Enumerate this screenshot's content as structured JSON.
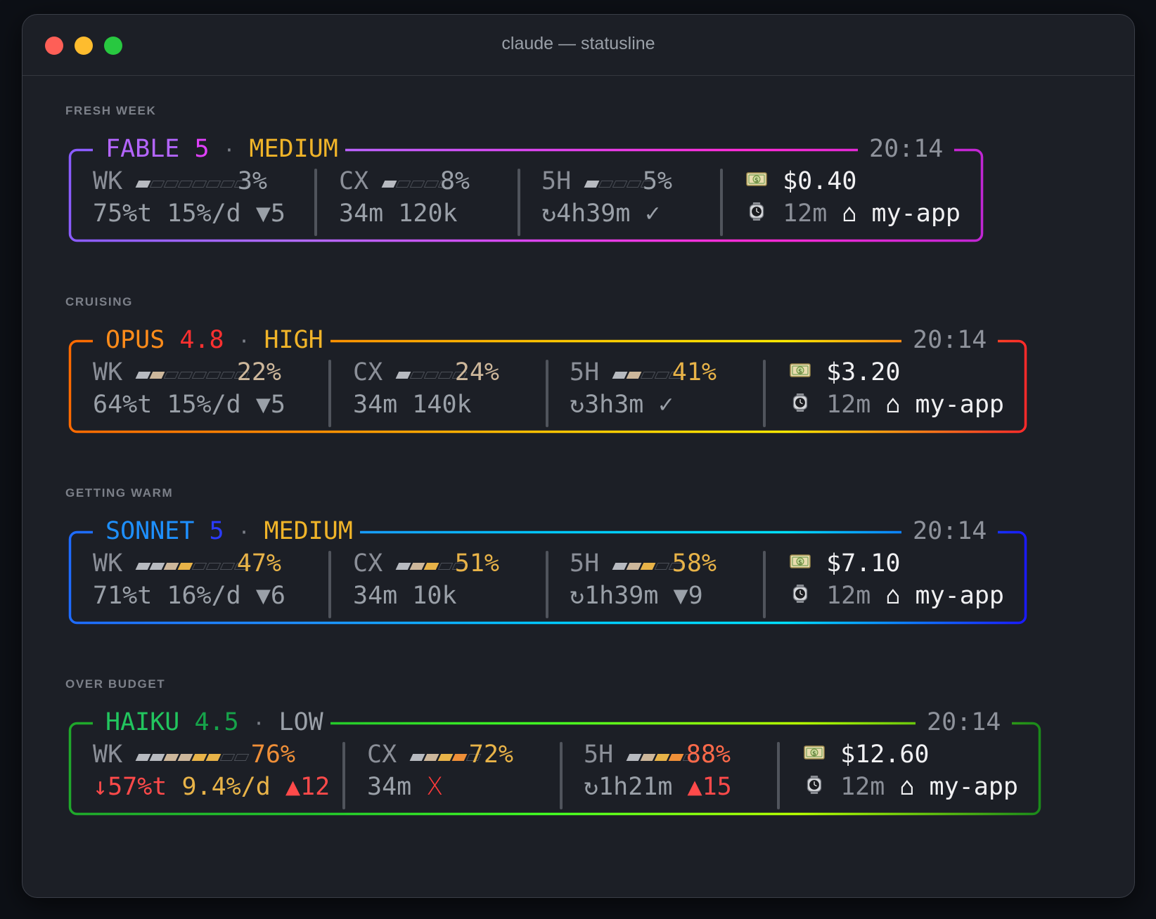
{
  "window": {
    "title": "claude — statusline"
  },
  "colors": {
    "bg": "#1c1f26",
    "muted": "#8b8f98",
    "white": "#f0f0f2",
    "amber": "#e8b348",
    "orange": "#ef8f38",
    "red": "#ff4a4a"
  },
  "cards": [
    {
      "section": "FRESH WEEK",
      "model": "FABLE",
      "version": "5",
      "effort": "MEDIUM",
      "time": "20:14",
      "colors": {
        "model": "#b465ff",
        "version": "#e040fb",
        "effort": "#f0b429",
        "border": [
          "#8a5cff",
          "#b26bff",
          "#d946ef",
          "#ff2bd6",
          "#c026d3"
        ]
      },
      "wk": {
        "label": "WK",
        "bar": [
          1,
          0,
          0,
          0,
          0,
          0,
          0,
          0
        ],
        "pct": "3%",
        "pct_color": "#9aa0a8",
        "l2": [
          "75%t",
          "15%/d",
          "▼5"
        ],
        "l2_colors": [
          "#9aa0a8",
          "#9aa0a8",
          "#9aa0a8"
        ]
      },
      "cx": {
        "label": "CX",
        "bar": [
          1,
          0,
          0,
          0,
          0
        ],
        "pct": "8%",
        "pct_color": "#9aa0a8",
        "l2": [
          "34m",
          "120k"
        ],
        "l2_colors": [
          "#9aa0a8",
          "#9aa0a8"
        ]
      },
      "fh": {
        "label": "5H",
        "bar": [
          1,
          0,
          0,
          0,
          0
        ],
        "pct": "5%",
        "pct_color": "#9aa0a8",
        "l2": [
          "↻4h39m",
          "✓"
        ],
        "l2_colors": [
          "#9aa0a8",
          "#9aa0a8"
        ]
      },
      "cost": "$0.40",
      "duration": "12m",
      "home_glyph": "⌂",
      "project": "my-app"
    },
    {
      "section": "CRUISING",
      "model": "OPUS",
      "version": "4.8",
      "effort": "HIGH",
      "time": "20:14",
      "colors": {
        "model": "#ff8c1a",
        "version": "#ff3030",
        "effort": "#f0b429",
        "border": [
          "#ff6a00",
          "#ff8c00",
          "#ffc400",
          "#ffea00",
          "#ff2a2a"
        ]
      },
      "wk": {
        "label": "WK",
        "bar": [
          1,
          2,
          0,
          0,
          0,
          0,
          0,
          0
        ],
        "pct": "22%",
        "pct_color": "#cdb79b",
        "l2": [
          "64%t",
          "15%/d",
          "▼5"
        ],
        "l2_colors": [
          "#9aa0a8",
          "#9aa0a8",
          "#9aa0a8"
        ]
      },
      "cx": {
        "label": "CX",
        "bar": [
          1,
          0,
          0,
          0,
          0
        ],
        "pct": "24%",
        "pct_color": "#cdb79b",
        "l2": [
          "34m",
          "140k"
        ],
        "l2_colors": [
          "#9aa0a8",
          "#9aa0a8"
        ]
      },
      "fh": {
        "label": "5H",
        "bar": [
          1,
          2,
          0,
          0,
          0
        ],
        "pct": "41%",
        "pct_color": "#e8b348",
        "l2": [
          "↻3h3m",
          "✓"
        ],
        "l2_colors": [
          "#9aa0a8",
          "#9aa0a8"
        ]
      },
      "cost": "$3.20",
      "duration": "12m",
      "home_glyph": "⌂",
      "project": "my-app"
    },
    {
      "section": "GETTING WARM",
      "model": "SONNET",
      "version": "5",
      "effort": "MEDIUM",
      "time": "20:14",
      "colors": {
        "model": "#1e90ff",
        "version": "#2a3bff",
        "effort": "#f0b429",
        "border": [
          "#1e6bff",
          "#1e90ff",
          "#00c8ff",
          "#00e0ff",
          "#1a1aff"
        ]
      },
      "wk": {
        "label": "WK",
        "bar": [
          1,
          1,
          2,
          3,
          0,
          0,
          0,
          0
        ],
        "pct": "47%",
        "pct_color": "#e8b348",
        "l2": [
          "71%t",
          "16%/d",
          "▼6"
        ],
        "l2_colors": [
          "#9aa0a8",
          "#9aa0a8",
          "#9aa0a8"
        ]
      },
      "cx": {
        "label": "CX",
        "bar": [
          1,
          2,
          3,
          0,
          0
        ],
        "pct": "51%",
        "pct_color": "#e8b348",
        "l2": [
          "34m",
          "10k"
        ],
        "l2_colors": [
          "#9aa0a8",
          "#9aa0a8"
        ]
      },
      "fh": {
        "label": "5H",
        "bar": [
          1,
          2,
          3,
          0,
          0
        ],
        "pct": "58%",
        "pct_color": "#e8b348",
        "l2": [
          "↻1h39m",
          "▼9"
        ],
        "l2_colors": [
          "#9aa0a8",
          "#9aa0a8"
        ]
      },
      "cost": "$7.10",
      "duration": "12m",
      "home_glyph": "⌂",
      "project": "my-app"
    },
    {
      "section": "OVER BUDGET",
      "model": "HAIKU",
      "version": "4.5",
      "effort": "LOW",
      "time": "20:14",
      "colors": {
        "model": "#22c55e",
        "version": "#16a34a",
        "effort": "#9aa0a8",
        "border": [
          "#1fa82b",
          "#22c52b",
          "#44ff22",
          "#b6ff00",
          "#1a8a1a"
        ]
      },
      "wk": {
        "label": "WK",
        "bar": [
          1,
          1,
          2,
          2,
          3,
          3,
          0,
          0
        ],
        "pct": "76%",
        "pct_color": "#ef8f38",
        "l2": [
          "↓57%t",
          "9.4%/d",
          "▲12"
        ],
        "l2_colors": [
          "#ff4a4a",
          "#e8b348",
          "#ff4a4a"
        ]
      },
      "cx": {
        "label": "CX",
        "bar": [
          1,
          2,
          3,
          4,
          0
        ],
        "pct": "72%",
        "pct_color": "#e8b348",
        "l2": [
          "34m",
          "X"
        ],
        "l2_colors": [
          "#9aa0a8",
          "#ff3a3a"
        ]
      },
      "fh": {
        "label": "5H",
        "bar": [
          1,
          2,
          3,
          4,
          0
        ],
        "pct": "88%",
        "pct_color": "#ff6a4a",
        "l2": [
          "↻1h21m",
          "▲15"
        ],
        "l2_colors": [
          "#9aa0a8",
          "#ff4a4a"
        ]
      },
      "cost": "$12.60",
      "duration": "12m",
      "home_glyph": "⌂",
      "project": "my-app"
    }
  ],
  "icons": {
    "money": "money-icon",
    "watch": "watch-icon"
  }
}
